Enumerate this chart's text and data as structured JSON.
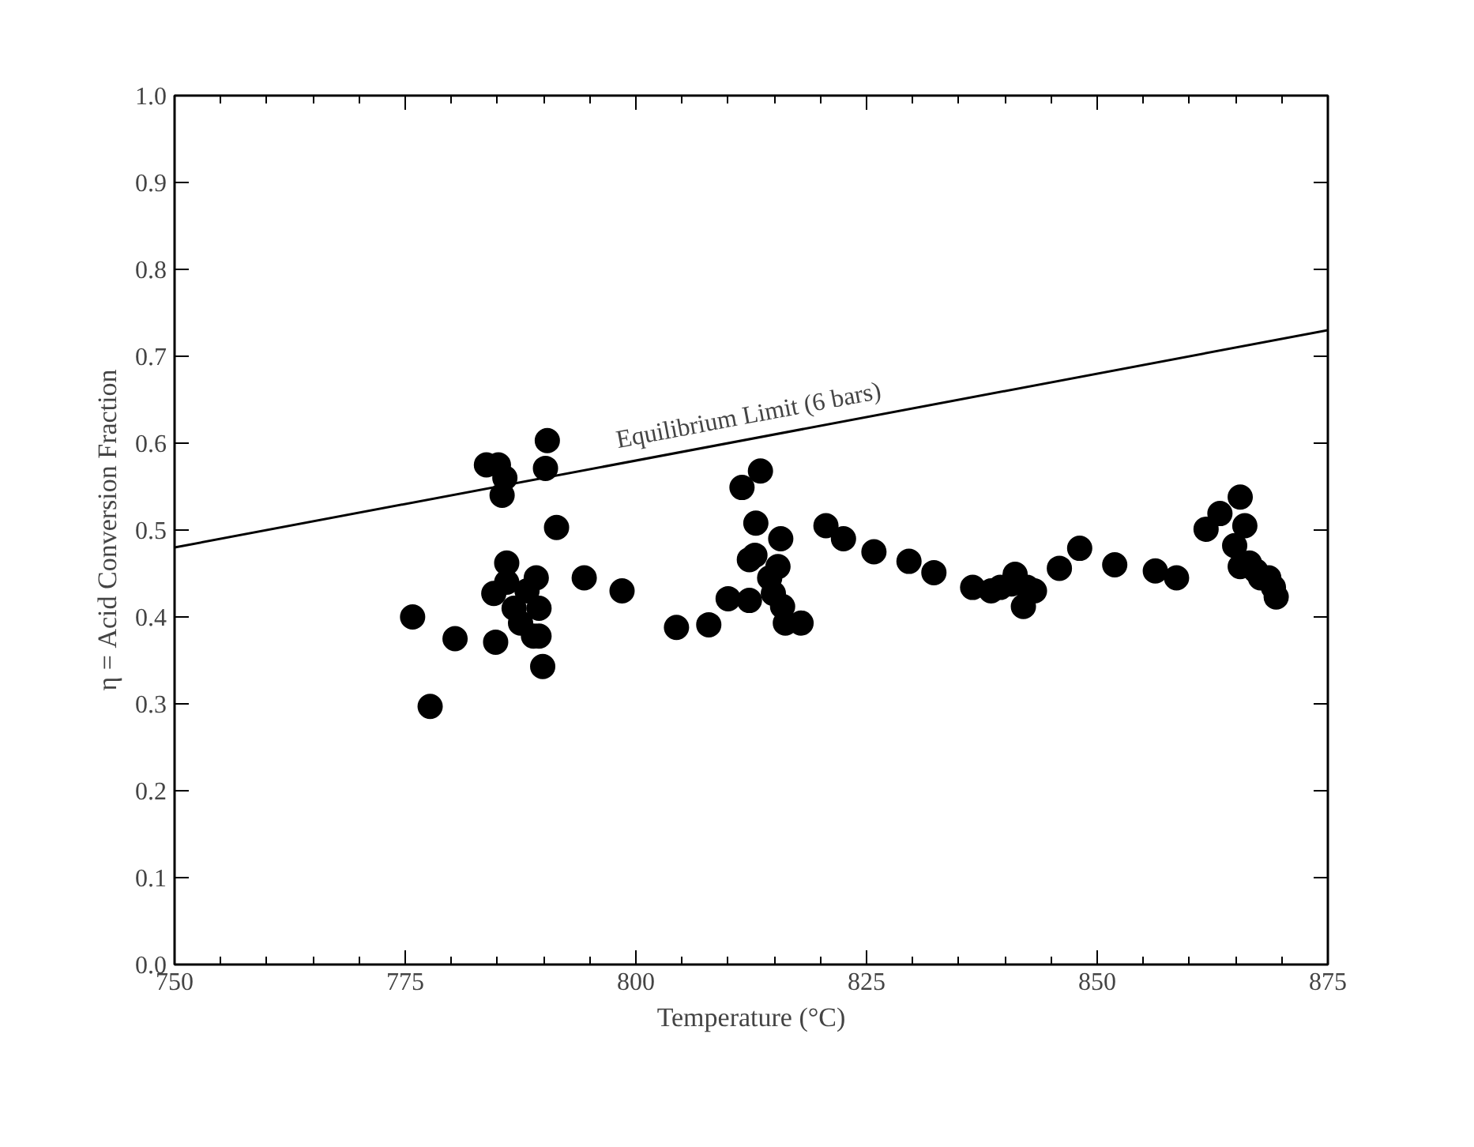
{
  "chart_data": {
    "type": "scatter",
    "xlabel": "Temperature (°C)",
    "ylabel": "η = Acid Conversion Fraction",
    "xlim": [
      750,
      875
    ],
    "xticks": [
      750,
      775,
      800,
      825,
      850,
      875
    ],
    "ylim": [
      0,
      1
    ],
    "yticks": [
      {
        "value": 0,
        "label": "0.0"
      },
      0.1,
      0.2,
      0.3,
      0.4,
      0.5,
      0.6,
      0.7,
      0.8,
      0.9,
      {
        "value": 1,
        "label": "1.0"
      }
    ],
    "grid": false,
    "marker": "circle",
    "annotations": [
      "Equilibrium Limit (6 bars)"
    ],
    "series": [
      {
        "color": "#000000",
        "x": [
          775.8,
          777.7,
          780.4,
          783.8,
          785.1,
          785.8,
          785.5,
          784.6,
          784.8,
          786.0,
          786.0,
          786.8,
          787.5,
          788.2,
          788.9,
          789.2,
          789.5,
          789.5,
          789.9,
          790.4,
          790.2,
          791.4,
          794.4,
          798.5,
          804.4,
          807.9,
          810.0,
          811.5,
          813.5,
          812.3,
          812.9,
          812.3,
          813.0,
          814.5,
          814.9,
          815.7,
          815.4,
          815.9,
          816.2,
          817.9,
          820.6,
          822.5,
          825.8,
          829.6,
          832.3,
          836.5,
          838.5,
          839.5,
          840.7,
          841.1,
          842.0,
          842.4,
          843.2,
          845.9,
          848.1,
          851.9,
          856.3,
          858.6,
          861.8,
          863.3,
          865.5,
          866.0,
          864.9,
          865.5,
          866.5,
          867.7,
          868.6,
          869.1,
          869.4,
          867.2
        ],
        "values": [
          0.4,
          0.297,
          0.375,
          0.575,
          0.575,
          0.56,
          0.54,
          0.427,
          0.371,
          0.462,
          0.44,
          0.41,
          0.393,
          0.43,
          0.378,
          0.445,
          0.41,
          0.378,
          0.343,
          0.603,
          0.571,
          0.503,
          0.445,
          0.43,
          0.388,
          0.391,
          0.421,
          0.549,
          0.568,
          0.419,
          0.471,
          0.466,
          0.508,
          0.445,
          0.427,
          0.49,
          0.458,
          0.412,
          0.393,
          0.393,
          0.505,
          0.49,
          0.475,
          0.464,
          0.451,
          0.434,
          0.43,
          0.434,
          0.438,
          0.449,
          0.412,
          0.434,
          0.43,
          0.456,
          0.479,
          0.46,
          0.453,
          0.445,
          0.501,
          0.519,
          0.538,
          0.505,
          0.482,
          0.458,
          0.462,
          0.445,
          0.445,
          0.434,
          0.423,
          0.453
        ]
      },
      {
        "type": "line",
        "color": "#000000",
        "line_style": "solid",
        "marker": "none",
        "x": [
          750,
          875
        ],
        "values": [
          0.48,
          0.73
        ]
      }
    ]
  }
}
